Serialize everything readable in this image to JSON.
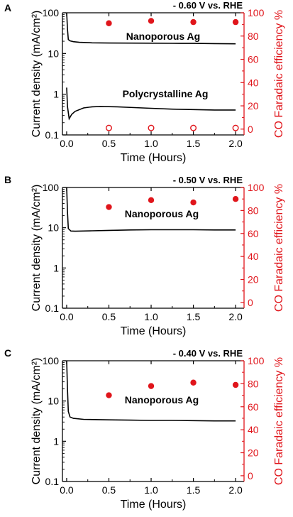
{
  "colors": {
    "axis": "#000000",
    "fe_axis": "#e0151b",
    "fe_marker": "#e0151b",
    "trace": "#000000"
  },
  "panel_labels": [
    "A",
    "B",
    "C"
  ],
  "chart_data": [
    {
      "type": "line+scatter",
      "panel": "A",
      "title": "- 0.60 V vs. RHE",
      "xlabel": "Time (Hours)",
      "ylabel_left": "Current density (mA/cm²)",
      "ylabel_right": "CO Faradaic efficiency %",
      "xlim": [
        -0.05,
        2.1
      ],
      "ylim_left": [
        0.1,
        100
      ],
      "y_left_scale": "log",
      "ylim_right": [
        -5,
        100
      ],
      "x_ticks": [
        "0.0",
        "0.5",
        "1.0",
        "1.5",
        "2.0"
      ],
      "y_left_ticks": [
        "0.1",
        "1",
        "10",
        "100"
      ],
      "y_right_ticks": [
        "0",
        "20",
        "40",
        "60",
        "80",
        "100"
      ],
      "annotations": [
        "Nanoporous Ag",
        "Polycrystalline Ag"
      ],
      "current_series": [
        {
          "name": "Nanoporous Ag",
          "x": [
            0.0,
            0.01,
            0.02,
            0.04,
            0.08,
            0.15,
            0.3,
            0.5,
            0.75,
            1.0,
            1.25,
            1.5,
            1.75,
            2.0
          ],
          "y": [
            100,
            40,
            22,
            20.5,
            19.5,
            18.8,
            18.3,
            18.1,
            18.0,
            17.9,
            17.8,
            17.7,
            17.5,
            17.3
          ]
        },
        {
          "name": "Polycrystalline Ag",
          "x": [
            0.0,
            0.01,
            0.03,
            0.06,
            0.1,
            0.2,
            0.3,
            0.4,
            0.6,
            0.8,
            1.0,
            1.25,
            1.5,
            1.75,
            2.0
          ],
          "y": [
            1.45,
            0.5,
            0.25,
            0.32,
            0.38,
            0.46,
            0.49,
            0.5,
            0.49,
            0.47,
            0.45,
            0.43,
            0.42,
            0.41,
            0.41
          ]
        }
      ],
      "fe_series": [
        {
          "name": "Nanoporous Ag",
          "marker": "filled",
          "x": [
            0.5,
            1.0,
            1.5,
            2.0
          ],
          "y": [
            91,
            93,
            92,
            92
          ]
        },
        {
          "name": "Polycrystalline Ag",
          "marker": "open",
          "x": [
            0.5,
            1.0,
            1.5,
            2.0
          ],
          "y": [
            1,
            1,
            1,
            1
          ]
        }
      ]
    },
    {
      "type": "line+scatter",
      "panel": "B",
      "title": "- 0.50 V vs. RHE",
      "xlabel": "Time (Hours)",
      "ylabel_left": "Current density (mA/cm²)",
      "ylabel_right": "CO Faradaic efficiency %",
      "xlim": [
        -0.05,
        2.1
      ],
      "ylim_left": [
        0.1,
        100
      ],
      "y_left_scale": "log",
      "ylim_right": [
        -5,
        100
      ],
      "x_ticks": [
        "0.0",
        "0.5",
        "1.0",
        "1.5",
        "2.0"
      ],
      "y_left_ticks": [
        "0.1",
        "1",
        "10",
        "100"
      ],
      "y_right_ticks": [
        "0",
        "20",
        "40",
        "60",
        "80",
        "100"
      ],
      "annotations": [
        "Nanoporous Ag"
      ],
      "current_series": [
        {
          "name": "Nanoporous Ag",
          "x": [
            0.0,
            0.01,
            0.02,
            0.05,
            0.1,
            0.3,
            0.5,
            0.75,
            1.0,
            1.25,
            1.5,
            1.75,
            2.0
          ],
          "y": [
            100,
            25,
            9.5,
            8.3,
            8.2,
            8.4,
            8.6,
            8.8,
            8.9,
            8.9,
            8.9,
            8.8,
            8.8
          ]
        }
      ],
      "fe_series": [
        {
          "name": "Nanoporous Ag",
          "marker": "filled",
          "x": [
            0.5,
            1.0,
            1.5,
            2.0
          ],
          "y": [
            83,
            89,
            87,
            90
          ]
        }
      ]
    },
    {
      "type": "line+scatter",
      "panel": "C",
      "title": "- 0.40 V vs. RHE",
      "xlabel": "Time (Hours)",
      "ylabel_left": "Current density (mA/cm²)",
      "ylabel_right": "CO Faradaic efficiency %",
      "xlim": [
        -0.05,
        2.1
      ],
      "ylim_left": [
        0.1,
        100
      ],
      "y_left_scale": "log",
      "ylim_right": [
        -5,
        100
      ],
      "x_ticks": [
        "0.0",
        "0.5",
        "1.0",
        "1.5",
        "2.0"
      ],
      "y_left_ticks": [
        "0.1",
        "1",
        "10",
        "100"
      ],
      "y_right_ticks": [
        "0",
        "20",
        "40",
        "60",
        "80",
        "100"
      ],
      "annotations": [
        "Nanoporous Ag"
      ],
      "current_series": [
        {
          "name": "Nanoporous Ag",
          "x": [
            0.0,
            0.01,
            0.02,
            0.04,
            0.08,
            0.2,
            0.5,
            0.75,
            1.0,
            1.25,
            1.5,
            1.75,
            2.0
          ],
          "y": [
            100,
            20,
            5.5,
            4.0,
            3.7,
            3.5,
            3.4,
            3.35,
            3.3,
            3.3,
            3.25,
            3.2,
            3.2
          ]
        }
      ],
      "fe_series": [
        {
          "name": "Nanoporous Ag",
          "marker": "filled",
          "x": [
            0.5,
            1.0,
            1.5,
            2.0
          ],
          "y": [
            70,
            78,
            81,
            79
          ]
        }
      ]
    }
  ]
}
